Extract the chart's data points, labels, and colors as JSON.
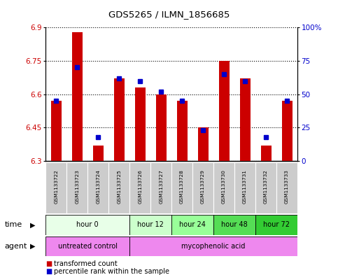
{
  "title": "GDS5265 / ILMN_1856685",
  "samples": [
    "GSM1133722",
    "GSM1133723",
    "GSM1133724",
    "GSM1133725",
    "GSM1133726",
    "GSM1133727",
    "GSM1133728",
    "GSM1133729",
    "GSM1133730",
    "GSM1133731",
    "GSM1133732",
    "GSM1133733"
  ],
  "transformed_count": [
    6.57,
    6.88,
    6.37,
    6.67,
    6.63,
    6.6,
    6.57,
    6.45,
    6.75,
    6.67,
    6.37,
    6.57
  ],
  "percentile_rank": [
    45,
    70,
    18,
    62,
    60,
    52,
    45,
    23,
    65,
    60,
    18,
    45
  ],
  "ylim_left": [
    6.3,
    6.9
  ],
  "ylim_right": [
    0,
    100
  ],
  "yticks_left": [
    6.3,
    6.45,
    6.6,
    6.75,
    6.9
  ],
  "yticks_right": [
    0,
    25,
    50,
    75,
    100
  ],
  "ytick_labels_left": [
    "6.3",
    "6.45",
    "6.6",
    "6.75",
    "6.9"
  ],
  "ytick_labels_right": [
    "0",
    "25",
    "50",
    "75",
    "100%"
  ],
  "bar_color": "#cc0000",
  "dot_color": "#0000cc",
  "background_color": "#ffffff",
  "grid_color": "#000000",
  "time_groups": [
    {
      "label": "hour 0",
      "indices": [
        0,
        1,
        2,
        3
      ],
      "color": "#e8ffe8"
    },
    {
      "label": "hour 12",
      "indices": [
        4,
        5
      ],
      "color": "#ccffcc"
    },
    {
      "label": "hour 24",
      "indices": [
        6,
        7
      ],
      "color": "#99ff99"
    },
    {
      "label": "hour 48",
      "indices": [
        8,
        9
      ],
      "color": "#55dd55"
    },
    {
      "label": "hour 72",
      "indices": [
        10,
        11
      ],
      "color": "#33cc33"
    }
  ],
  "legend_red": "transformed count",
  "legend_blue": "percentile rank within the sample",
  "left_ylabel_color": "#cc0000",
  "right_ylabel_color": "#0000cc",
  "bar_width": 0.5,
  "base_value": 6.3
}
